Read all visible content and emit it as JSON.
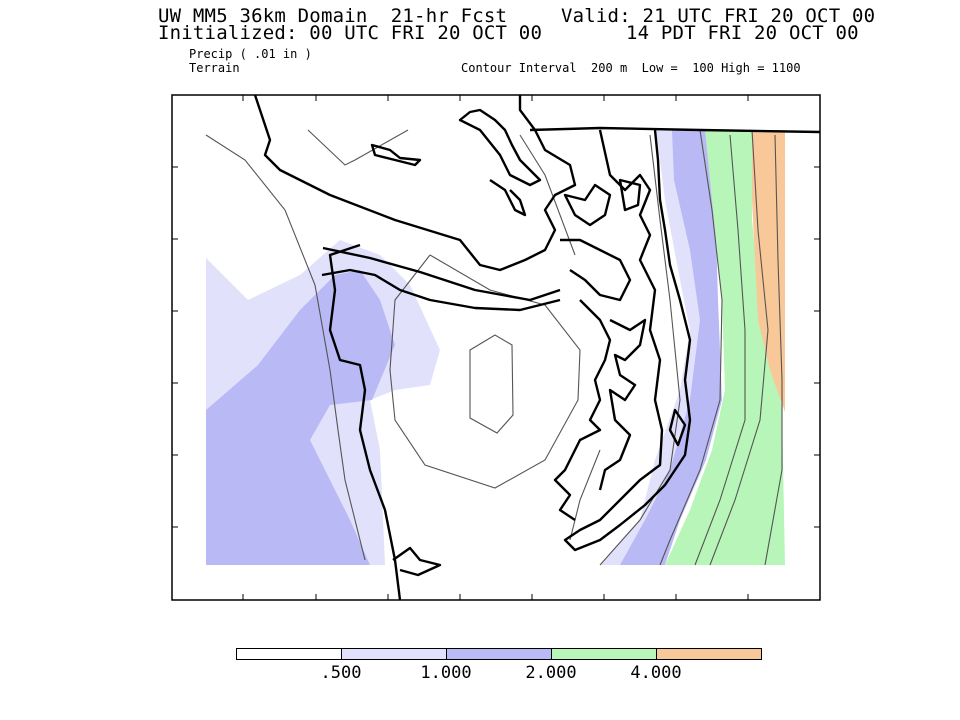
{
  "header": {
    "model_line": "UW MM5 36km Domain  21-hr Fcst",
    "init_line": "Initialized: 00 UTC FRI 20 OCT 00",
    "valid_line_utc": "Valid: 21 UTC FRI 20 OCT 00",
    "valid_line_pdt": "14 PDT FRI 20 OCT 00"
  },
  "fields": {
    "precip_label": "Precip ( .01 in )",
    "terrain_label": "Terrain",
    "contour_info": "Contour Interval  200 m  Low =  100 High = 1100"
  },
  "legend": {
    "colors": [
      "#ffffff",
      "#e1e1fb",
      "#b9b9f5",
      "#b8f5b8",
      "#f9c898"
    ],
    "labels": [
      ".500",
      "1.000",
      "2.000",
      "4.000"
    ]
  },
  "map_colors": {
    "precip_050": "#e1e1fb",
    "precip_100": "#b9b9f5",
    "precip_200": "#b8f5b8",
    "precip_400": "#f9c898"
  }
}
